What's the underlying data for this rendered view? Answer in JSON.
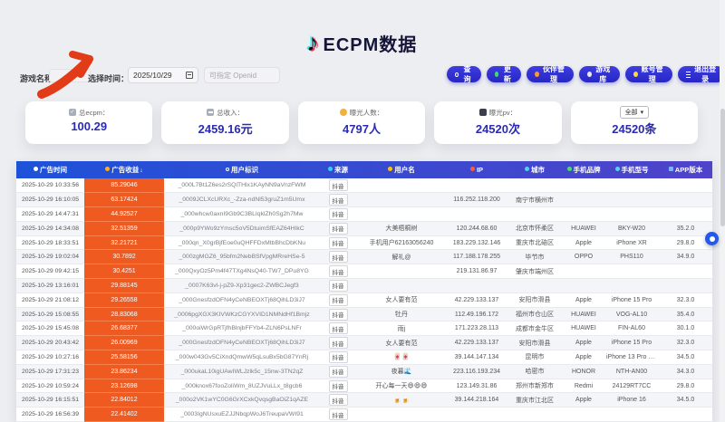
{
  "colors": {
    "accent_blue": "#2e2ed2",
    "table_header_gradient": [
      "#1d52d8",
      "#4f43c9"
    ],
    "revenue_orange": "#ee5a20",
    "stat_value_navy": "#2b2bb2",
    "arrow_red": "#e23b17",
    "logo_cyan": "#25f4ee",
    "logo_pink": "#fe2c55"
  },
  "header": {
    "logo_icon": "tiktok-note-icon",
    "title": "ECPM数据",
    "filters": {
      "game_name_label": "游戏名称：",
      "time_label": "选择时间：",
      "date_value": "2025/10/29",
      "openid_placeholder": "可指定 Openid"
    },
    "buttons": [
      {
        "icon": "search-icon",
        "label": "查询"
      },
      {
        "icon": "refresh-icon",
        "label": "更新"
      },
      {
        "icon": "partner-icon",
        "label": "伙伴管理"
      },
      {
        "icon": "game-library-icon",
        "label": "游戏库"
      },
      {
        "icon": "key-icon",
        "label": "账号管理"
      },
      {
        "icon": "logout-icon",
        "label": "退出登录"
      }
    ]
  },
  "stats": [
    {
      "icon": "check-icon",
      "label": "总ecpm：",
      "value": "100.29"
    },
    {
      "icon": "banknote-icon",
      "label": "总收入：",
      "value": "2459.16元"
    },
    {
      "icon": "people-icon",
      "label": "曝光人数：",
      "value": "4797人"
    },
    {
      "icon": "chart-icon",
      "label": "曝光pv：",
      "value": "24520次"
    },
    {
      "select_value": "全部",
      "select_arrow": "▾",
      "value": "24520条"
    }
  ],
  "table": {
    "columns": [
      {
        "label": "广告时间",
        "icon": "clock-icon"
      },
      {
        "label": "广告收益",
        "icon": "money-icon",
        "sort": "↓"
      },
      {
        "label": "用户标识",
        "icon": "user-icon"
      },
      {
        "label": "来源",
        "icon": "source-icon"
      },
      {
        "label": "用户名",
        "icon": "users-icon"
      },
      {
        "label": "IP",
        "icon": "ip-icon"
      },
      {
        "label": "城市",
        "icon": "city-icon"
      },
      {
        "label": "手机品牌",
        "icon": "brand-icon"
      },
      {
        "label": "手机型号",
        "icon": "model-icon"
      },
      {
        "label": "APP版本",
        "icon": "version-icon"
      }
    ],
    "rows": [
      {
        "time": "2025-10-29 10:33:56",
        "revenue": "85.29046",
        "user_id": "_000L7Bt1Z6es2rSQlTHlx1KAyNN9aVnzFWM",
        "source": "抖音",
        "username": "",
        "ip": "",
        "city": "",
        "brand": "",
        "model": "",
        "version": ""
      },
      {
        "time": "2025-10-29 16:10:05",
        "revenue": "63.17424",
        "user_id": "_0009JCLXcURXc_-Zza-ndNl53gruZ1m5Umx",
        "source": "抖音",
        "username": "",
        "ip": "116.252.118.200",
        "city": "南宁市横州市",
        "brand": "",
        "model": "",
        "version": ""
      },
      {
        "time": "2025-10-29 14:47:31",
        "revenue": "44.92527",
        "user_id": "_000whcw0axnI9Gb9C3BLIqklZh0Sg2h7Mw",
        "source": "抖音",
        "username": "",
        "ip": "",
        "city": "",
        "brand": "",
        "model": "",
        "version": ""
      },
      {
        "time": "2025-10-29 14:34:08",
        "revenue": "32.51359",
        "user_id": "_000p9YWo9zYmsc5oV5DtuimSfEAZ64HIkC",
        "source": "抖音",
        "username": "大美梧桐树",
        "ip": "120.244.68.60",
        "city": "北京市怀柔区",
        "brand": "HUAWEI",
        "model": "BKY-W20",
        "version": "35.2.0"
      },
      {
        "time": "2025-10-29 18:33:51",
        "revenue": "32.21721",
        "user_id": "_000qn_X0grBjfEoe0uQHFFDxMtbBhcDbKNu",
        "source": "抖音",
        "username": "手机用户62163056240",
        "ip": "183.229.132.146",
        "city": "重庆市北碚区",
        "brand": "Apple",
        "model": "iPhone XR",
        "version": "29.8.0"
      },
      {
        "time": "2025-10-29 19:02:04",
        "revenue": "30.7892",
        "user_id": "_000zgMGZ6_95bfm2NebBSfVpgMRreHSe-5",
        "source": "抖音",
        "username": "解礼@",
        "ip": "117.188.178.255",
        "city": "毕节市",
        "brand": "OPPO",
        "model": "PHS110",
        "version": "34.9.0"
      },
      {
        "time": "2025-10-29 09:42:15",
        "revenue": "30.4251",
        "user_id": "_000QxyOz5Pm4f47TXg4NsQ40-TW7_DPu8YG",
        "source": "抖音",
        "username": "",
        "ip": "219.131.86.97",
        "city": "肇庆市端州区",
        "brand": "",
        "model": "",
        "version": ""
      },
      {
        "time": "2025-10-29 13:16:01",
        "revenue": "29.88145",
        "user_id": "_0007K63vl-j-pZ9-Xp31gec2-ZWBCJegf3",
        "source": "抖音",
        "username": "",
        "ip": "",
        "city": "",
        "brand": "",
        "model": "",
        "version": ""
      },
      {
        "time": "2025-10-29 21:08:12",
        "revenue": "29.26558",
        "user_id": "_000GnesfzdOFN4yCeNBEOXTj68QihLD3iJ7",
        "source": "抖音",
        "username": "女人要有范",
        "ip": "42.229.133.137",
        "city": "安阳市滑县",
        "brand": "Apple",
        "model": "iPhone 15 Pro",
        "version": "32.3.0"
      },
      {
        "time": "2025-10-29 15:08:55",
        "revenue": "28.83068",
        "user_id": "_0006pgXGX3KIVWKzCGYXVID1NMNdHf1Bmjz",
        "source": "抖音",
        "username": "牡丹",
        "ip": "112.49.196.172",
        "city": "福州市仓山区",
        "brand": "HUAWEI",
        "model": "VOG-AL10",
        "version": "35.4.0"
      },
      {
        "time": "2025-10-29 15:45:08",
        "revenue": "26.68377",
        "user_id": "_000oiWrGpRTjfhBlnjbFFYb4-ZLN6PsLNFr",
        "source": "抖音",
        "username": "雨j",
        "ip": "171.223.28.113",
        "city": "成都市金牛区",
        "brand": "HUAWEI",
        "model": "FIN-AL60",
        "version": "30.1.0"
      },
      {
        "time": "2025-10-29 20:43:42",
        "revenue": "26.00969",
        "user_id": "_000GnesfzdOFN4yCeNBEOXTj68QihLD3iJ7",
        "source": "抖音",
        "username": "女人要有范",
        "ip": "42.229.133.137",
        "city": "安阳市滑县",
        "brand": "Apple",
        "model": "iPhone 15 Pro",
        "version": "32.3.0"
      },
      {
        "time": "2025-10-29 10:27:16",
        "revenue": "25.58156",
        "user_id": "_000w043Gv5CiXndQmwW5qLsuBx5bG87YnRj",
        "source": "抖音",
        "username": "🀄🀄",
        "ip": "39.144.147.134",
        "city": "昆明市",
        "brand": "Apple",
        "model": "iPhone 13 Pro Max",
        "version": "34.5.0"
      },
      {
        "time": "2025-10-29 17:31:23",
        "revenue": "23.86234",
        "user_id": "_000ukaL10igUAwIWLJzlk5c_15nw-3TN2qZ",
        "source": "抖音",
        "username": "夜暮🌊",
        "ip": "223.116.193.234",
        "city": "哈密市",
        "brand": "HONOR",
        "model": "NTH-AN00",
        "version": "34.3.0"
      },
      {
        "time": "2025-10-29 10:59:24",
        "revenue": "23.12698",
        "user_id": "_000knox67fooZoliWm_8UZJVuLLx_t8gcb6",
        "source": "抖音",
        "username": "开心每一天😄😄😄",
        "ip": "123.149.31.86",
        "city": "郑州市新郑市",
        "brand": "Redmi",
        "model": "24129RT7CC",
        "version": "29.8.0"
      },
      {
        "time": "2025-10-29 16:15:51",
        "revenue": "22.84012",
        "user_id": "_000o2VK1wYC0G6GrXCxkQvqsgBaOiZ1qAZE",
        "source": "抖音",
        "username": "🍺🍺",
        "ip": "39.144.218.164",
        "city": "重庆市江北区",
        "brand": "Apple",
        "model": "iPhone 16",
        "version": "34.5.0"
      },
      {
        "time": "2025-10-29 16:56:39",
        "revenue": "22.41402",
        "user_id": "_0003IgNUsxuEZJJNbqpWoJ6TreupaVWI91",
        "source": "抖音",
        "username": "",
        "ip": "",
        "city": "",
        "brand": "",
        "model": "",
        "version": ""
      }
    ]
  }
}
